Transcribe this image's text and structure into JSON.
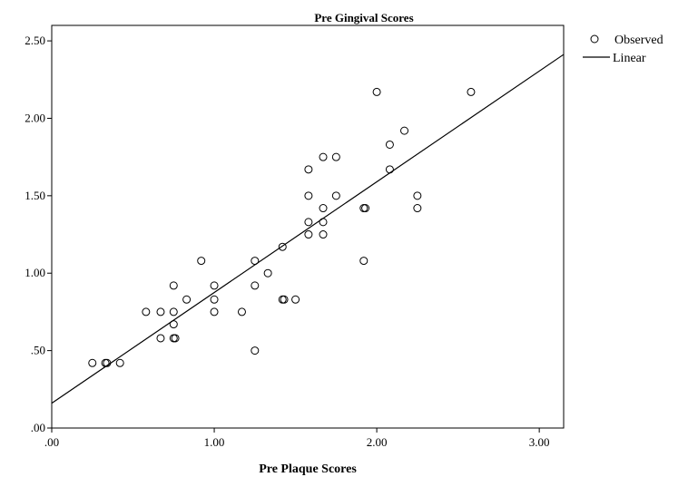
{
  "chart_data": {
    "type": "scatter",
    "title": "Pre Gingival Scores",
    "xlabel": "Pre Plaque Scores",
    "ylabel": "",
    "xlim": [
      0,
      3.15
    ],
    "ylim": [
      0,
      2.6
    ],
    "x_ticks": [
      0,
      1,
      2,
      3
    ],
    "x_tick_labels": [
      ".00",
      "1.00",
      "2.00",
      "3.00"
    ],
    "y_ticks": [
      0,
      0.5,
      1,
      1.5,
      2,
      2.5
    ],
    "y_tick_labels": [
      ".00",
      ".50",
      "1.00",
      "1.50",
      "2.00",
      "2.50"
    ],
    "grid": false,
    "legend": {
      "position": "top-right",
      "entries": [
        "Observed",
        "Linear"
      ]
    },
    "series": [
      {
        "name": "Observed",
        "marker": "open-circle",
        "points": [
          [
            0.25,
            0.42
          ],
          [
            0.33,
            0.42
          ],
          [
            0.34,
            0.42
          ],
          [
            0.42,
            0.42
          ],
          [
            0.58,
            0.75
          ],
          [
            0.67,
            0.75
          ],
          [
            0.67,
            0.58
          ],
          [
            0.75,
            0.92
          ],
          [
            0.75,
            0.75
          ],
          [
            0.75,
            0.67
          ],
          [
            0.75,
            0.58
          ],
          [
            0.76,
            0.58
          ],
          [
            0.83,
            0.83
          ],
          [
            0.92,
            1.08
          ],
          [
            1.0,
            0.92
          ],
          [
            1.0,
            0.83
          ],
          [
            1.0,
            0.75
          ],
          [
            1.17,
            0.75
          ],
          [
            1.25,
            1.08
          ],
          [
            1.25,
            0.92
          ],
          [
            1.25,
            0.5
          ],
          [
            1.33,
            1.0
          ],
          [
            1.42,
            1.17
          ],
          [
            1.42,
            0.83
          ],
          [
            1.43,
            0.83
          ],
          [
            1.5,
            0.83
          ],
          [
            1.58,
            1.67
          ],
          [
            1.58,
            1.5
          ],
          [
            1.58,
            1.33
          ],
          [
            1.58,
            1.25
          ],
          [
            1.67,
            1.75
          ],
          [
            1.67,
            1.42
          ],
          [
            1.67,
            1.33
          ],
          [
            1.67,
            1.25
          ],
          [
            1.75,
            1.75
          ],
          [
            1.75,
            1.5
          ],
          [
            1.92,
            1.42
          ],
          [
            1.93,
            1.42
          ],
          [
            1.92,
            1.08
          ],
          [
            2.0,
            2.17
          ],
          [
            2.08,
            1.83
          ],
          [
            2.08,
            1.67
          ],
          [
            2.17,
            1.92
          ],
          [
            2.25,
            1.5
          ],
          [
            2.25,
            1.42
          ],
          [
            2.58,
            2.17
          ]
        ]
      },
      {
        "name": "Linear",
        "type": "line",
        "intercept": 0.16,
        "slope": 0.715,
        "x_range": [
          0,
          3.15
        ]
      }
    ]
  }
}
